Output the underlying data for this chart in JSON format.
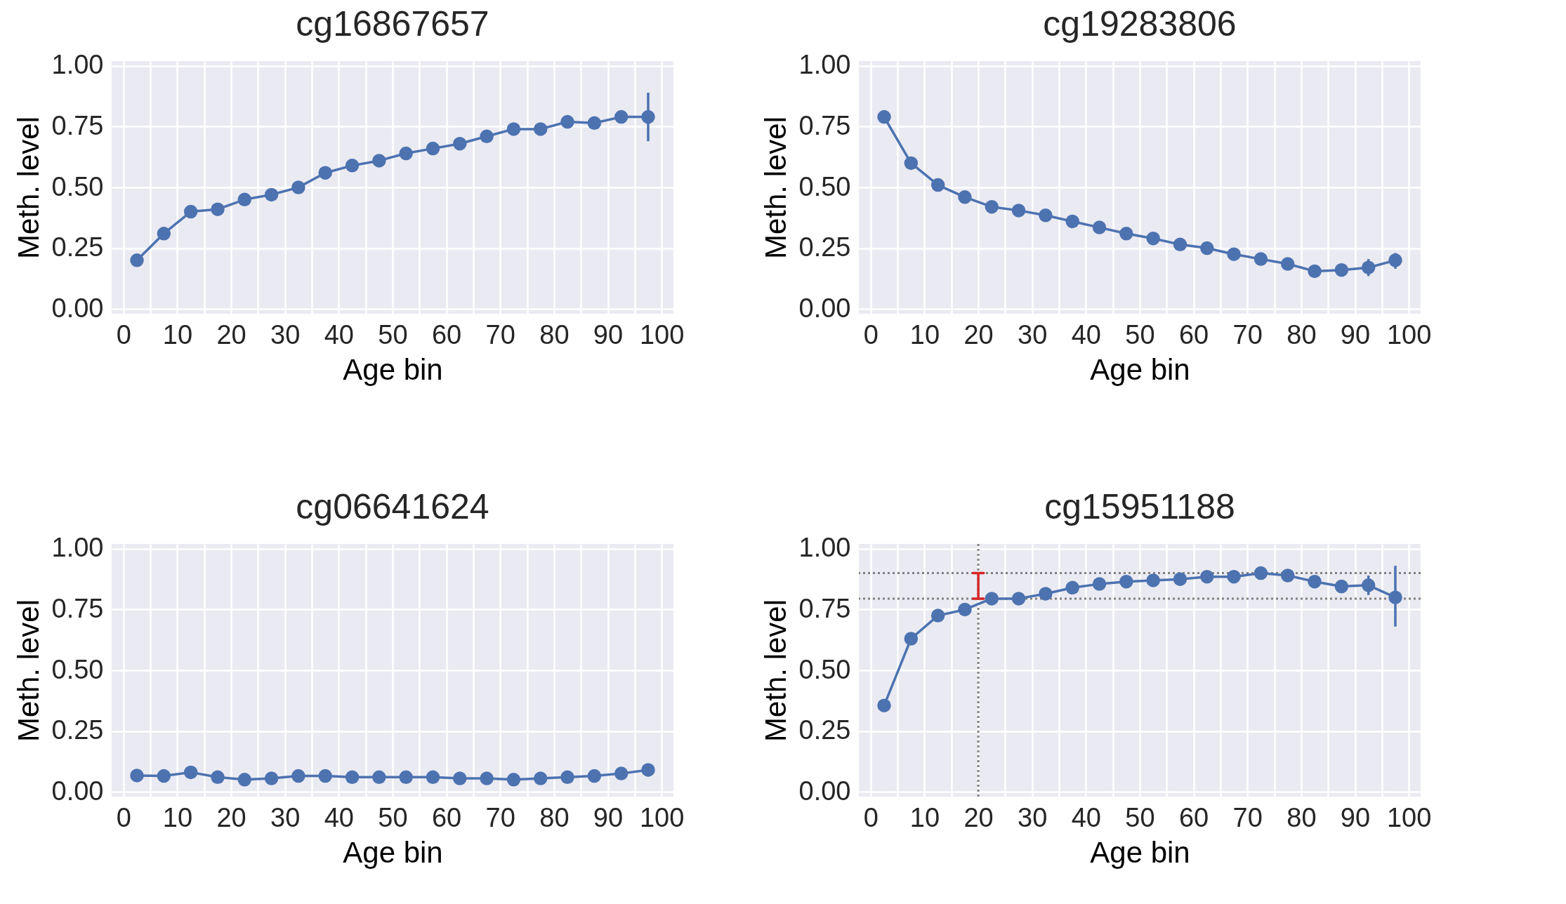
{
  "chart_data": [
    {
      "type": "line",
      "title": "cg16867657",
      "xlabel": "Age bin",
      "ylabel": "Meth. level",
      "marker": "circle",
      "grid": true,
      "x": [
        2.5,
        7.5,
        12.5,
        17.5,
        22.5,
        27.5,
        32.5,
        37.5,
        42.5,
        47.5,
        52.5,
        57.5,
        62.5,
        67.5,
        72.5,
        77.5,
        82.5,
        87.5,
        92.5,
        97.5
      ],
      "series": [
        {
          "color": "#4c72b0",
          "values": [
            0.2,
            0.31,
            0.4,
            0.41,
            0.45,
            0.47,
            0.5,
            0.56,
            0.59,
            0.61,
            0.64,
            0.66,
            0.68,
            0.71,
            0.74,
            0.74,
            0.77,
            0.765,
            0.79,
            0.79
          ],
          "errors": [
            null,
            null,
            null,
            null,
            null,
            null,
            null,
            null,
            null,
            null,
            null,
            null,
            null,
            null,
            null,
            null,
            null,
            null,
            null,
            [
              0.69,
              0.89
            ]
          ]
        }
      ],
      "xlim": [
        -2.2,
        102.2
      ],
      "ylim": [
        -0.02,
        1.02
      ],
      "xticks": [
        0,
        {
          "value": 5,
          "label": null
        },
        10,
        {
          "value": 15,
          "label": null
        },
        20,
        {
          "value": 25,
          "label": null
        },
        30,
        {
          "value": 35,
          "label": null
        },
        40,
        {
          "value": 45,
          "label": null
        },
        50,
        {
          "value": 55,
          "label": null
        },
        60,
        {
          "value": 65,
          "label": null
        },
        70,
        {
          "value": 75,
          "label": null
        },
        80,
        {
          "value": 85,
          "label": null
        },
        90,
        {
          "value": 95,
          "label": null
        },
        100
      ],
      "yticks": [
        {
          "value": 0,
          "label": "0.00"
        },
        {
          "value": 0.25,
          "label": "0.25"
        },
        {
          "value": 0.5,
          "label": "0.50"
        },
        {
          "value": 0.75,
          "label": "0.75"
        },
        {
          "value": 1,
          "label": "1.00"
        }
      ]
    },
    {
      "type": "line",
      "title": "cg19283806",
      "xlabel": "Age bin",
      "ylabel": "Meth. level",
      "marker": "circle",
      "grid": true,
      "x": [
        2.5,
        7.5,
        12.5,
        17.5,
        22.5,
        27.5,
        32.5,
        37.5,
        42.5,
        47.5,
        52.5,
        57.5,
        62.5,
        67.5,
        72.5,
        77.5,
        82.5,
        87.5,
        92.5,
        97.5
      ],
      "series": [
        {
          "color": "#4c72b0",
          "values": [
            0.79,
            0.6,
            0.51,
            0.46,
            0.42,
            0.405,
            0.385,
            0.36,
            0.335,
            0.31,
            0.29,
            0.265,
            0.25,
            0.225,
            0.205,
            0.185,
            0.155,
            0.16,
            0.17,
            0.2
          ],
          "errors": [
            null,
            null,
            null,
            null,
            null,
            null,
            null,
            null,
            null,
            null,
            null,
            null,
            null,
            null,
            null,
            null,
            null,
            null,
            [
              0.135,
              0.205
            ],
            [
              0.165,
              0.23
            ]
          ]
        }
      ],
      "xlim": [
        -2.2,
        102.2
      ],
      "ylim": [
        -0.02,
        1.02
      ],
      "xticks": [
        0,
        {
          "value": 5,
          "label": null
        },
        10,
        {
          "value": 15,
          "label": null
        },
        20,
        {
          "value": 25,
          "label": null
        },
        30,
        {
          "value": 35,
          "label": null
        },
        40,
        {
          "value": 45,
          "label": null
        },
        50,
        {
          "value": 55,
          "label": null
        },
        60,
        {
          "value": 65,
          "label": null
        },
        70,
        {
          "value": 75,
          "label": null
        },
        80,
        {
          "value": 85,
          "label": null
        },
        90,
        {
          "value": 95,
          "label": null
        },
        100
      ],
      "yticks": [
        {
          "value": 0,
          "label": "0.00"
        },
        {
          "value": 0.25,
          "label": "0.25"
        },
        {
          "value": 0.5,
          "label": "0.50"
        },
        {
          "value": 0.75,
          "label": "0.75"
        },
        {
          "value": 1,
          "label": "1.00"
        }
      ]
    },
    {
      "type": "line",
      "title": "cg06641624",
      "xlabel": "Age bin",
      "ylabel": "Meth. level",
      "marker": "circle",
      "grid": true,
      "x": [
        2.5,
        7.5,
        12.5,
        17.5,
        22.5,
        27.5,
        32.5,
        37.5,
        42.5,
        47.5,
        52.5,
        57.5,
        62.5,
        67.5,
        72.5,
        77.5,
        82.5,
        87.5,
        92.5,
        97.5
      ],
      "series": [
        {
          "color": "#4c72b0",
          "values": [
            0.067,
            0.065,
            0.08,
            0.06,
            0.05,
            0.055,
            0.065,
            0.065,
            0.06,
            0.06,
            0.06,
            0.06,
            0.055,
            0.055,
            0.05,
            0.055,
            0.06,
            0.065,
            0.075,
            0.09
          ]
        }
      ],
      "xlim": [
        -2.2,
        102.2
      ],
      "ylim": [
        -0.02,
        1.02
      ],
      "xticks": [
        0,
        {
          "value": 5,
          "label": null
        },
        10,
        {
          "value": 15,
          "label": null
        },
        20,
        {
          "value": 25,
          "label": null
        },
        30,
        {
          "value": 35,
          "label": null
        },
        40,
        {
          "value": 45,
          "label": null
        },
        50,
        {
          "value": 55,
          "label": null
        },
        60,
        {
          "value": 65,
          "label": null
        },
        70,
        {
          "value": 75,
          "label": null
        },
        80,
        {
          "value": 85,
          "label": null
        },
        90,
        {
          "value": 95,
          "label": null
        },
        100
      ],
      "yticks": [
        {
          "value": 0,
          "label": "0.00"
        },
        {
          "value": 0.25,
          "label": "0.25"
        },
        {
          "value": 0.5,
          "label": "0.50"
        },
        {
          "value": 0.75,
          "label": "0.75"
        },
        {
          "value": 1,
          "label": "1.00"
        }
      ]
    },
    {
      "type": "line",
      "title": "cg15951188",
      "xlabel": "Age bin",
      "ylabel": "Meth. level",
      "marker": "circle",
      "grid": true,
      "x": [
        2.5,
        7.5,
        12.5,
        17.5,
        22.5,
        27.5,
        32.5,
        37.5,
        42.5,
        47.5,
        52.5,
        57.5,
        62.5,
        67.5,
        72.5,
        77.5,
        82.5,
        87.5,
        92.5,
        97.5
      ],
      "series": [
        {
          "color": "#4c72b0",
          "values": [
            0.355,
            0.63,
            0.725,
            0.75,
            0.795,
            0.795,
            0.815,
            0.84,
            0.855,
            0.865,
            0.87,
            0.875,
            0.885,
            0.885,
            0.9,
            0.89,
            0.865,
            0.845,
            0.85,
            0.8
          ],
          "errors": [
            null,
            null,
            null,
            null,
            null,
            null,
            null,
            null,
            null,
            null,
            null,
            null,
            null,
            null,
            null,
            null,
            null,
            null,
            [
              0.81,
              0.89
            ],
            [
              0.68,
              0.93
            ]
          ]
        },
        {
          "type": "line",
          "marker": "none",
          "color": "#d62728",
          "x": [
            19,
            21,
            20,
            20,
            19,
            21
          ],
          "values": [
            0.9,
            0.9,
            0.9,
            0.795,
            0.795,
            0.795
          ]
        }
      ],
      "ref_lines": [
        {
          "axis": "y",
          "value": 0.9,
          "color": "#808080",
          "line_style": "dotted"
        },
        {
          "axis": "y",
          "value": 0.795,
          "color": "#808080",
          "line_style": "dotted"
        },
        {
          "axis": "x",
          "value": 20,
          "color": "#808080",
          "line_style": "dotted"
        }
      ],
      "xlim": [
        -2.2,
        102.2
      ],
      "ylim": [
        -0.02,
        1.02
      ],
      "xticks": [
        0,
        {
          "value": 5,
          "label": null
        },
        10,
        {
          "value": 15,
          "label": null
        },
        20,
        {
          "value": 25,
          "label": null
        },
        30,
        {
          "value": 35,
          "label": null
        },
        40,
        {
          "value": 45,
          "label": null
        },
        50,
        {
          "value": 55,
          "label": null
        },
        60,
        {
          "value": 65,
          "label": null
        },
        70,
        {
          "value": 75,
          "label": null
        },
        80,
        {
          "value": 85,
          "label": null
        },
        90,
        {
          "value": 95,
          "label": null
        },
        100
      ],
      "yticks": [
        {
          "value": 0,
          "label": "0.00"
        },
        {
          "value": 0.25,
          "label": "0.25"
        },
        {
          "value": 0.5,
          "label": "0.50"
        },
        {
          "value": 0.75,
          "label": "0.75"
        },
        {
          "value": 1,
          "label": "1.00"
        }
      ]
    }
  ]
}
